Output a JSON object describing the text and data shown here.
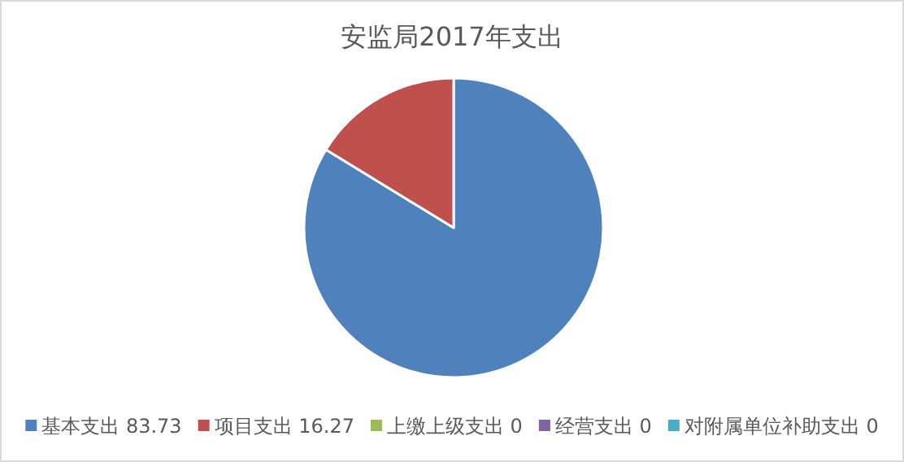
{
  "chart_data": {
    "type": "pie",
    "title": "安监局2017年支出",
    "categories": [
      "基本支出 83.73",
      "项目支出 16.27",
      "上缴上级支出 0",
      "经营支出 0",
      "对附属单位补助支出 0"
    ],
    "values": [
      83.73,
      16.27,
      0,
      0,
      0
    ],
    "colors": [
      "#4f81bd",
      "#c0504d",
      "#9bbb59",
      "#8064a2",
      "#4bacc6"
    ],
    "legend": "bottom"
  }
}
